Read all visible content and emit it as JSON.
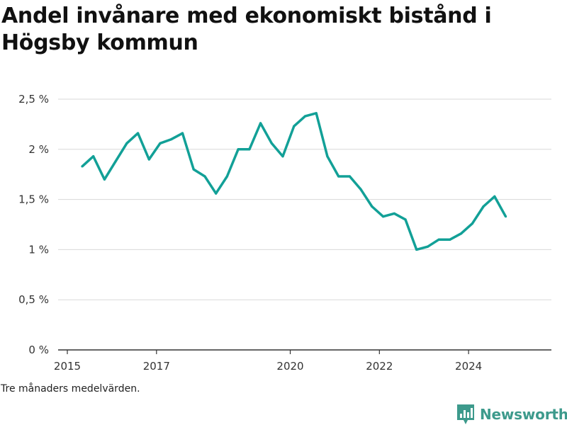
{
  "title": "Andel invånare med ekonomiskt bistånd i Högsby kommun",
  "footnote": "Tre månaders medelvärden.",
  "brand": {
    "name": "Newsworthy",
    "color": "#3d9a8c",
    "icon": "bar-chart-logo-icon"
  },
  "colors": {
    "line": "#12a097",
    "grid": "#d8d8d8",
    "axis": "#333333"
  },
  "chart_data": {
    "type": "line",
    "title": "Andel invånare med ekonomiskt bistånd i Högsby kommun",
    "xlabel": "",
    "ylabel": "",
    "ylim": [
      0,
      2.5
    ],
    "xlim": [
      "2015-01",
      "2025-05"
    ],
    "grid": true,
    "yticks": [
      {
        "value": 0,
        "label": "0 %"
      },
      {
        "value": 0.5,
        "label": "0,5 %"
      },
      {
        "value": 1,
        "label": "1 %"
      },
      {
        "value": 1.5,
        "label": "1,5 %"
      },
      {
        "value": 2,
        "label": "2 %"
      },
      {
        "value": 2.5,
        "label": "2,5 %"
      }
    ],
    "xticks": [
      {
        "value": "2015-01",
        "label": "2015"
      },
      {
        "value": "2017-01",
        "label": "2017"
      },
      {
        "value": "2020-01",
        "label": "2020"
      },
      {
        "value": "2022-01",
        "label": "2022"
      },
      {
        "value": "2024-01",
        "label": "2024"
      }
    ],
    "series": [
      {
        "x": [
          "2015-05",
          "2015-08",
          "2015-11",
          "2016-02",
          "2016-05",
          "2016-08",
          "2016-11",
          "2017-02",
          "2017-05",
          "2017-08",
          "2017-11",
          "2018-02",
          "2018-05",
          "2018-08",
          "2018-11",
          "2019-02",
          "2019-05",
          "2019-08",
          "2019-11",
          "2020-02",
          "2020-05",
          "2020-08",
          "2020-11",
          "2021-02",
          "2021-05",
          "2021-08",
          "2021-11",
          "2022-02",
          "2022-05",
          "2022-08",
          "2022-11",
          "2023-02",
          "2023-05",
          "2023-08",
          "2023-11",
          "2024-02",
          "2024-05",
          "2024-08",
          "2024-11"
        ],
        "values": [
          1.83,
          1.93,
          1.7,
          1.88,
          2.06,
          2.16,
          1.9,
          2.06,
          2.1,
          2.16,
          1.8,
          1.73,
          1.56,
          1.73,
          2.0,
          2.0,
          2.26,
          2.06,
          1.93,
          2.23,
          2.33,
          2.36,
          1.93,
          1.73,
          1.73,
          1.6,
          1.43,
          1.33,
          1.36,
          1.3,
          1.0,
          1.03,
          1.1,
          1.1,
          1.16,
          1.26,
          1.43,
          1.53,
          1.33
        ]
      }
    ]
  }
}
